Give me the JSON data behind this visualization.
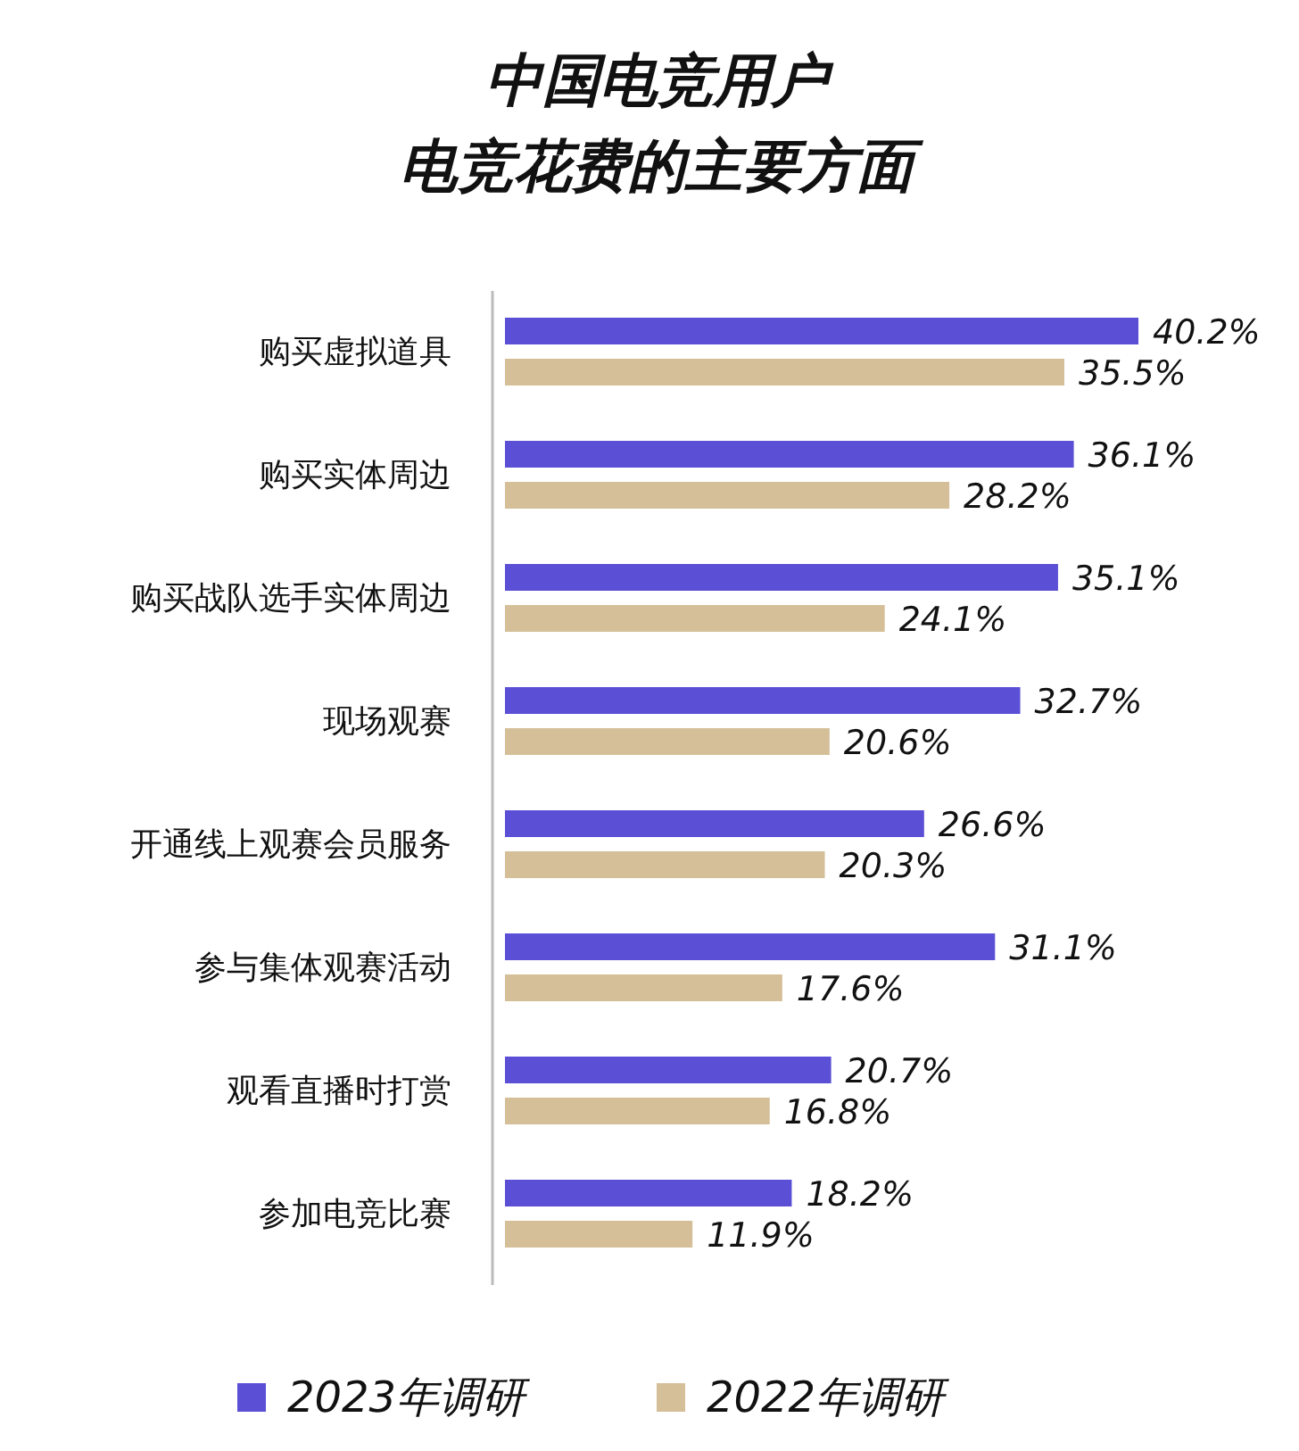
{
  "chart_data": {
    "type": "bar",
    "orientation": "horizontal",
    "title": "中国电竞用户",
    "subtitle": "电竞花费的主要方面",
    "categories": [
      "购买虚拟道具",
      "购买实体周边",
      "购买战队选手实体周边",
      "现场观赛",
      "开通线上观赛会员服务",
      "参与集体观赛活动",
      "观看直播时打赏",
      "参加电竞比赛"
    ],
    "series": [
      {
        "name": "2023年调研",
        "color": "#5b4fd6",
        "values": [
          40.2,
          36.1,
          35.1,
          32.7,
          26.6,
          31.1,
          20.7,
          18.2
        ],
        "value_labels": [
          "40.2%",
          "36.1%",
          "35.1%",
          "32.7%",
          "26.6%",
          "31.1%",
          "20.7%",
          "18.2%"
        ]
      },
      {
        "name": "2022年调研",
        "color": "#d4bf98",
        "values": [
          35.5,
          28.2,
          24.1,
          20.6,
          20.3,
          17.6,
          16.8,
          11.9
        ],
        "value_labels": [
          "35.5%",
          "28.2%",
          "24.1%",
          "20.6%",
          "20.3%",
          "17.6%",
          "16.8%",
          "11.9%"
        ]
      }
    ],
    "legend": "bottom"
  }
}
